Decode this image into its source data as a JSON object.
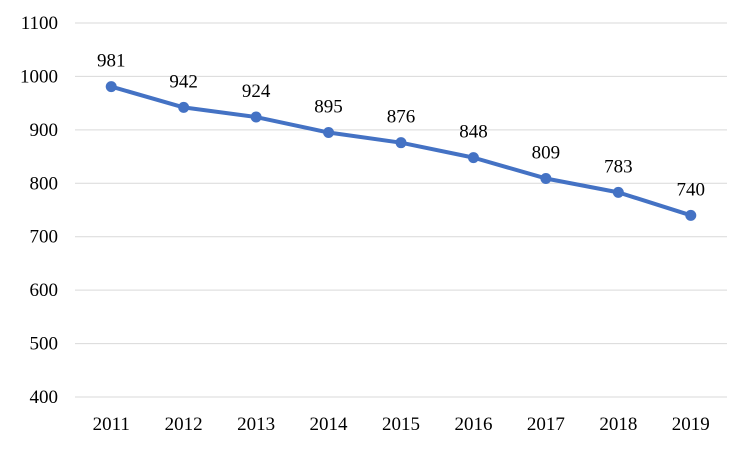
{
  "chart_data": {
    "type": "line",
    "title": "",
    "xlabel": "",
    "ylabel": "",
    "x": [
      "2011",
      "2012",
      "2013",
      "2014",
      "2015",
      "2016",
      "2017",
      "2018",
      "2019"
    ],
    "series": [
      {
        "values": [
          981,
          942,
          924,
          895,
          876,
          848,
          809,
          783,
          740
        ],
        "color": "#4472C4"
      }
    ],
    "ylim": [
      400,
      1100
    ],
    "yticks": [
      400,
      500,
      600,
      700,
      800,
      900,
      1000,
      1100
    ],
    "grid": true,
    "gridColor": "#D9D9D9",
    "data_labels": true,
    "legend": "none"
  }
}
